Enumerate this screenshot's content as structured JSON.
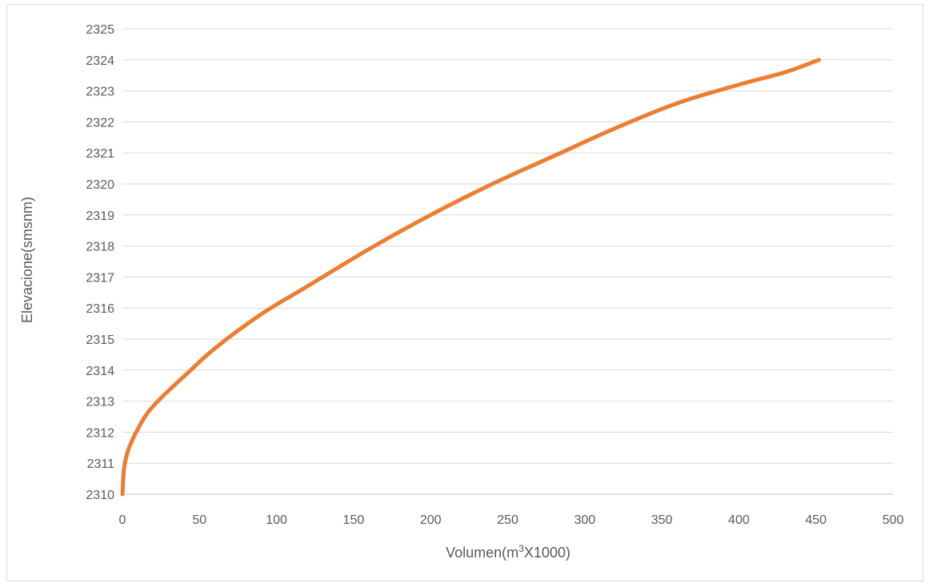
{
  "chart_data": {
    "type": "line",
    "title": "",
    "xlabel": "Volumen(m³X1000)",
    "xlabel_parts": {
      "before": "Volumen(m",
      "sup": "3",
      "after": "X1000)"
    },
    "ylabel": "Elevacione(smsnm)",
    "xlim": [
      0,
      500
    ],
    "ylim": [
      2310,
      2325
    ],
    "x_ticks": [
      "0",
      "50",
      "100",
      "150",
      "200",
      "250",
      "300",
      "350",
      "400",
      "450",
      "500"
    ],
    "y_ticks": [
      "2310",
      "2311",
      "2312",
      "2313",
      "2314",
      "2315",
      "2316",
      "2317",
      "2318",
      "2319",
      "2320",
      "2321",
      "2322",
      "2323",
      "2324",
      "2325"
    ],
    "grid": "horizontal",
    "legend": "none",
    "series": [
      {
        "color": "#ed7d31",
        "x": [
          0,
          1,
          3,
          6,
          10,
          16,
          25,
          40,
          60,
          90,
          120,
          160,
          200,
          240,
          280,
          320,
          360,
          400,
          430,
          452
        ],
        "y": [
          2310,
          2310.8,
          2311.3,
          2311.7,
          2312.1,
          2312.6,
          2313.1,
          2313.8,
          2314.7,
          2315.8,
          2316.7,
          2317.9,
          2319.0,
          2320.0,
          2320.9,
          2321.8,
          2322.6,
          2323.2,
          2323.6,
          2324.0
        ]
      }
    ]
  }
}
